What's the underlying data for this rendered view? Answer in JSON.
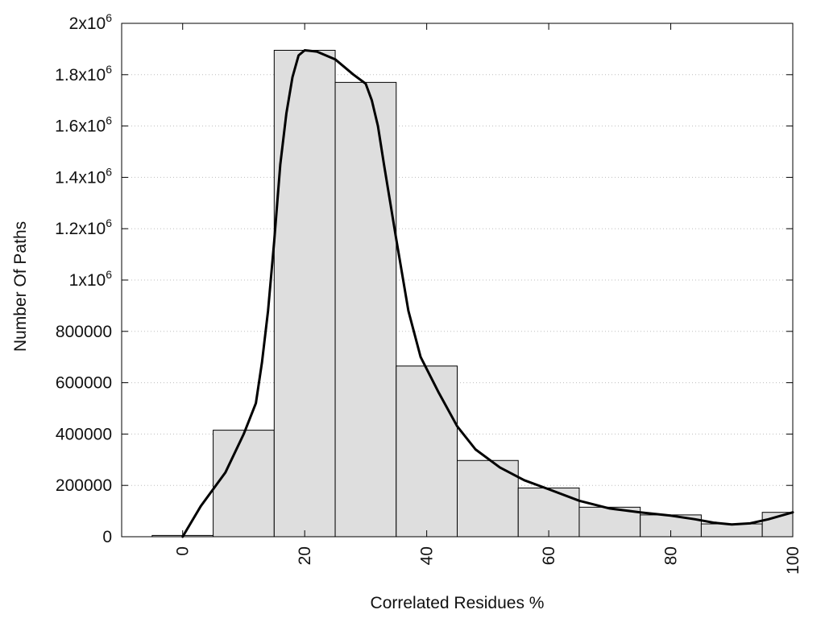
{
  "chart_data": {
    "type": "bar",
    "xlabel": "Correlated Residues %",
    "ylabel": "Number Of Paths",
    "xlim": [
      -10,
      100
    ],
    "ylim": [
      0,
      2000000
    ],
    "x_ticks": [
      {
        "value": 0,
        "label": "0"
      },
      {
        "value": 20,
        "label": "20"
      },
      {
        "value": 40,
        "label": "40"
      },
      {
        "value": 60,
        "label": "60"
      },
      {
        "value": 80,
        "label": "80"
      },
      {
        "value": 100,
        "label": "100"
      }
    ],
    "y_ticks": [
      {
        "value": 0,
        "label": "0",
        "sup": ""
      },
      {
        "value": 200000,
        "label": "200000",
        "sup": ""
      },
      {
        "value": 400000,
        "label": "400000",
        "sup": ""
      },
      {
        "value": 600000,
        "label": "600000",
        "sup": ""
      },
      {
        "value": 800000,
        "label": "800000",
        "sup": ""
      },
      {
        "value": 1000000,
        "label": "1x10",
        "sup": "6"
      },
      {
        "value": 1200000,
        "label": "1.2x10",
        "sup": "6"
      },
      {
        "value": 1400000,
        "label": "1.4x10",
        "sup": "6"
      },
      {
        "value": 1600000,
        "label": "1.6x10",
        "sup": "6"
      },
      {
        "value": 1800000,
        "label": "1.8x10",
        "sup": "6"
      },
      {
        "value": 2000000,
        "label": "2x10",
        "sup": "6"
      }
    ],
    "grid": "horizontal dotted",
    "bin_width": 10,
    "bars": [
      {
        "x": 0,
        "y": 5000
      },
      {
        "x": 10,
        "y": 415000
      },
      {
        "x": 20,
        "y": 1895000
      },
      {
        "x": 30,
        "y": 1770000
      },
      {
        "x": 40,
        "y": 665000
      },
      {
        "x": 50,
        "y": 297000
      },
      {
        "x": 60,
        "y": 190000
      },
      {
        "x": 70,
        "y": 115000
      },
      {
        "x": 80,
        "y": 85000
      },
      {
        "x": 90,
        "y": 50000
      },
      {
        "x": 100,
        "y": 95000
      }
    ],
    "curve": [
      {
        "x": 0,
        "y": 0
      },
      {
        "x": 3,
        "y": 120000
      },
      {
        "x": 7,
        "y": 250000
      },
      {
        "x": 10,
        "y": 400000
      },
      {
        "x": 12,
        "y": 520000
      },
      {
        "x": 13,
        "y": 680000
      },
      {
        "x": 14,
        "y": 880000
      },
      {
        "x": 15,
        "y": 1150000
      },
      {
        "x": 16,
        "y": 1450000
      },
      {
        "x": 17,
        "y": 1650000
      },
      {
        "x": 18,
        "y": 1790000
      },
      {
        "x": 19,
        "y": 1875000
      },
      {
        "x": 20,
        "y": 1895000
      },
      {
        "x": 22,
        "y": 1890000
      },
      {
        "x": 25,
        "y": 1860000
      },
      {
        "x": 28,
        "y": 1800000
      },
      {
        "x": 30,
        "y": 1765000
      },
      {
        "x": 31,
        "y": 1700000
      },
      {
        "x": 32,
        "y": 1600000
      },
      {
        "x": 33,
        "y": 1450000
      },
      {
        "x": 35,
        "y": 1160000
      },
      {
        "x": 37,
        "y": 880000
      },
      {
        "x": 39,
        "y": 700000
      },
      {
        "x": 42,
        "y": 560000
      },
      {
        "x": 45,
        "y": 430000
      },
      {
        "x": 48,
        "y": 340000
      },
      {
        "x": 52,
        "y": 270000
      },
      {
        "x": 56,
        "y": 220000
      },
      {
        "x": 60,
        "y": 185000
      },
      {
        "x": 65,
        "y": 140000
      },
      {
        "x": 70,
        "y": 110000
      },
      {
        "x": 75,
        "y": 95000
      },
      {
        "x": 80,
        "y": 82000
      },
      {
        "x": 84,
        "y": 68000
      },
      {
        "x": 87,
        "y": 55000
      },
      {
        "x": 90,
        "y": 48000
      },
      {
        "x": 93,
        "y": 52000
      },
      {
        "x": 96,
        "y": 68000
      },
      {
        "x": 100,
        "y": 95000
      }
    ]
  }
}
